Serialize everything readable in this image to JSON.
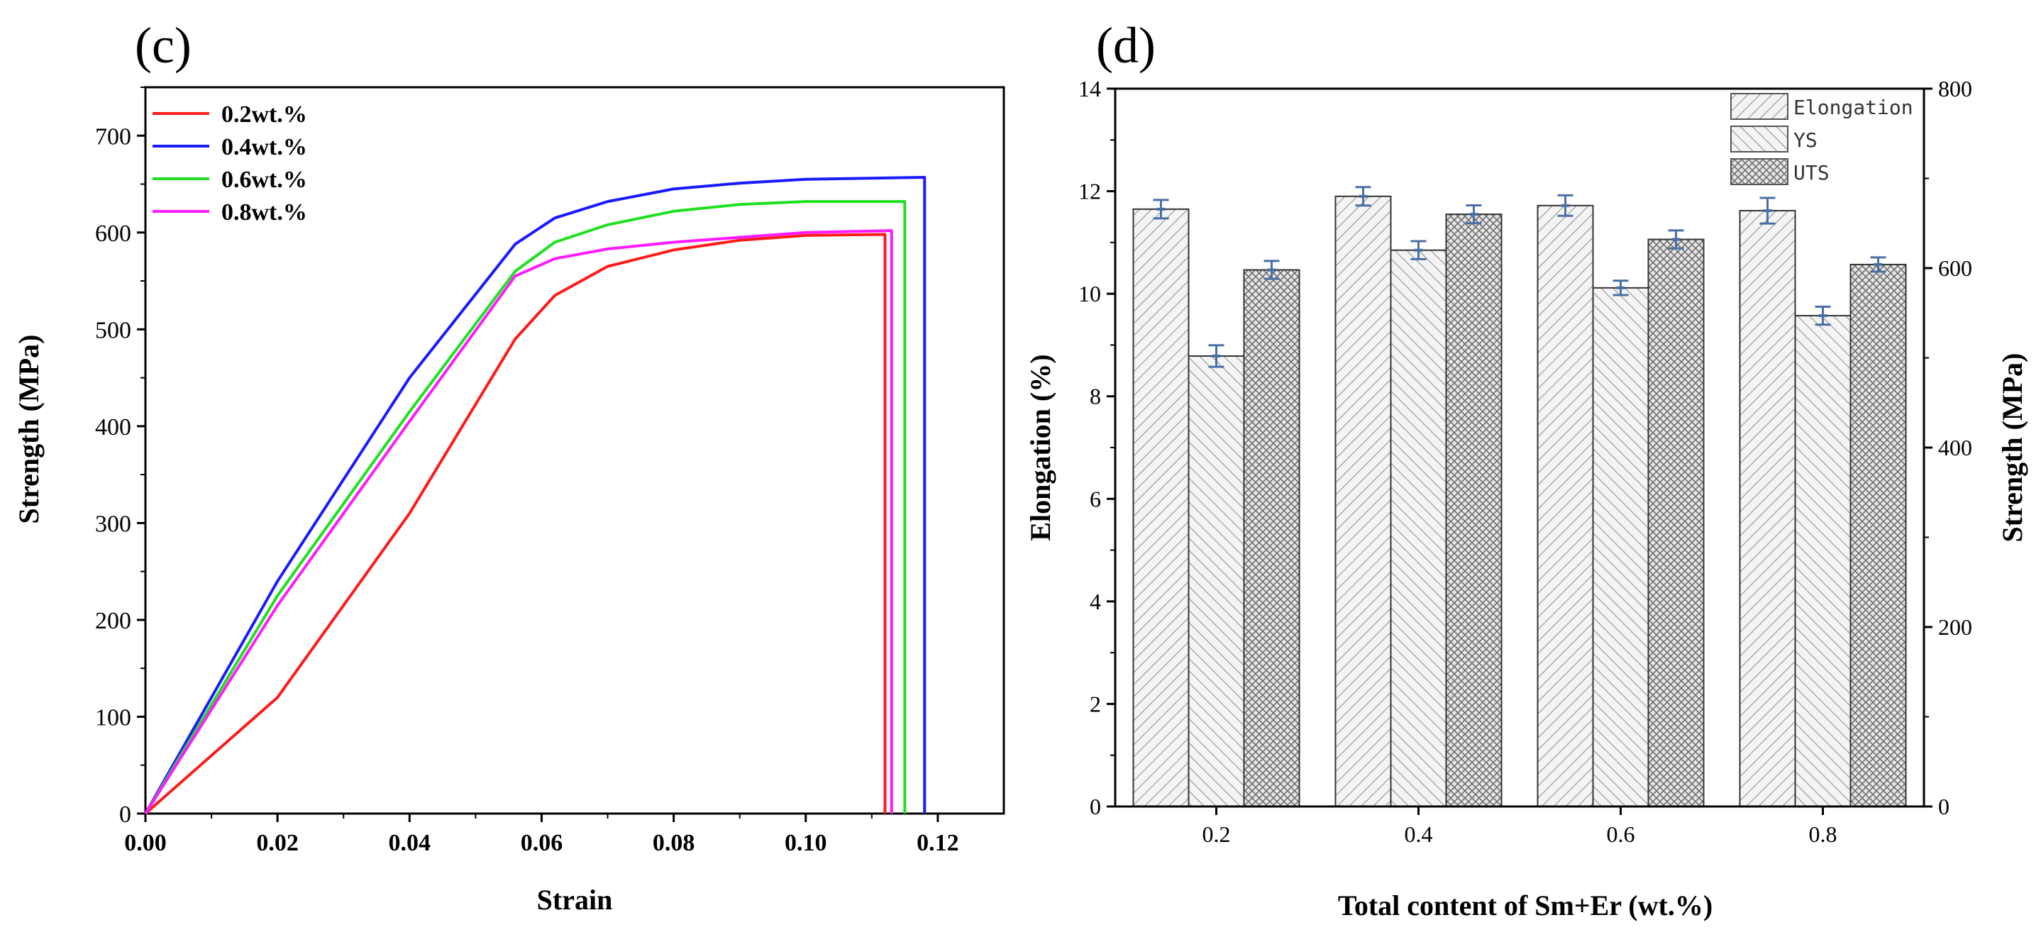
{
  "chart_data": [
    {
      "panel_label": "(c)",
      "type": "line",
      "xlabel": "Strain",
      "ylabel": "Strength (MPa)",
      "xlim": [
        0,
        0.13
      ],
      "ylim": [
        0,
        750
      ],
      "x_ticks": [
        "0.00",
        "0.02",
        "0.04",
        "0.06",
        "0.08",
        "0.10",
        "0.12"
      ],
      "y_ticks": [
        "0",
        "100",
        "200",
        "300",
        "400",
        "500",
        "600",
        "700"
      ],
      "legend_position": "top-left",
      "series": [
        {
          "name": "0.2wt.%",
          "color": "#ff1a1a",
          "points": [
            [
              0,
              0
            ],
            [
              0.02,
              120
            ],
            [
              0.04,
              310
            ],
            [
              0.056,
              490
            ],
            [
              0.062,
              535
            ],
            [
              0.07,
              565
            ],
            [
              0.08,
              582
            ],
            [
              0.09,
              592
            ],
            [
              0.1,
              597
            ],
            [
              0.112,
              598
            ],
            [
              0.112,
              0
            ]
          ]
        },
        {
          "name": "0.4wt.%",
          "color": "#1a1aff",
          "points": [
            [
              0,
              0
            ],
            [
              0.02,
              240
            ],
            [
              0.04,
              450
            ],
            [
              0.056,
              588
            ],
            [
              0.062,
              615
            ],
            [
              0.07,
              632
            ],
            [
              0.08,
              645
            ],
            [
              0.09,
              651
            ],
            [
              0.1,
              655
            ],
            [
              0.118,
              657
            ],
            [
              0.118,
              0
            ]
          ]
        },
        {
          "name": "0.6wt.%",
          "color": "#1fe01f",
          "points": [
            [
              0,
              0
            ],
            [
              0.02,
              225
            ],
            [
              0.04,
              415
            ],
            [
              0.056,
              560
            ],
            [
              0.062,
              590
            ],
            [
              0.07,
              608
            ],
            [
              0.08,
              622
            ],
            [
              0.09,
              629
            ],
            [
              0.1,
              632
            ],
            [
              0.115,
              632
            ],
            [
              0.115,
              0
            ]
          ]
        },
        {
          "name": "0.8wt.%",
          "color": "#ff1aff",
          "points": [
            [
              0,
              0
            ],
            [
              0.02,
              215
            ],
            [
              0.04,
              405
            ],
            [
              0.056,
              555
            ],
            [
              0.062,
              573
            ],
            [
              0.07,
              583
            ],
            [
              0.08,
              590
            ],
            [
              0.09,
              595
            ],
            [
              0.1,
              600
            ],
            [
              0.113,
              602
            ],
            [
              0.113,
              0
            ]
          ]
        }
      ]
    },
    {
      "panel_label": "(d)",
      "type": "bar",
      "xlabel": "Total content of Sm+Er (wt.%)",
      "ylabel": "Elongation (%)",
      "ylabel_right": "Strength (MPa)",
      "ylim": [
        0,
        14
      ],
      "ylim_right": [
        0,
        800
      ],
      "y_ticks": [
        "0",
        "2",
        "4",
        "6",
        "8",
        "10",
        "12",
        "14"
      ],
      "y_ticks_right": [
        "0",
        "200",
        "400",
        "600",
        "800"
      ],
      "categories": [
        "0.2",
        "0.4",
        "0.6",
        "0.8"
      ],
      "legend_position": "top-right",
      "series": [
        {
          "name": "Elongation",
          "axis": "left",
          "pattern": "pat-elong",
          "values": [
            11.65,
            11.9,
            11.72,
            11.62
          ],
          "errors": [
            0.18,
            0.18,
            0.2,
            0.25
          ]
        },
        {
          "name": "YS",
          "axis": "right",
          "pattern": "pat-ys",
          "values": [
            502,
            620,
            578,
            547
          ],
          "errors": [
            12,
            10,
            8,
            10
          ]
        },
        {
          "name": "UTS",
          "axis": "right",
          "pattern": "pat-uts",
          "values": [
            598,
            660,
            632,
            604
          ],
          "errors": [
            10,
            10,
            10,
            8
          ]
        }
      ]
    }
  ]
}
